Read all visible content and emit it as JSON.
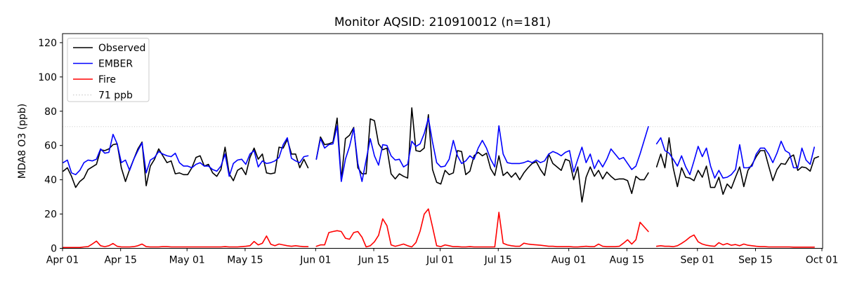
{
  "figure": {
    "title": "Monitor AQSID: 210910012 (n=181)"
  },
  "legend": {
    "items": [
      {
        "label": "Observed",
        "color": "#000000",
        "style": "solid"
      },
      {
        "label": "EMBER",
        "color": "#0000ff",
        "style": "solid"
      },
      {
        "label": "Fire",
        "color": "#ff0000",
        "style": "solid"
      },
      {
        "label": "71 ppb",
        "color": "#d3d3d3",
        "style": "dotted"
      }
    ],
    "position": "upper left"
  },
  "chart_data": {
    "type": "line",
    "title": "Monitor AQSID: 210910012 (n=181)",
    "xlabel": "",
    "ylabel": "MDA8 O3 (ppb)",
    "ylim": [
      0,
      125
    ],
    "grid": false,
    "x_unit": "daily dates",
    "date_range": [
      "Apr 01",
      "Sep 30"
    ],
    "missing_days": [
      "May 31",
      "Aug 21"
    ],
    "n_points": 181,
    "x_tick_labels": [
      "Apr 01",
      "Apr 15",
      "May 01",
      "May 15",
      "Jun 01",
      "Jun 15",
      "Jul 01",
      "Jul 15",
      "Aug 01",
      "Aug 15",
      "Sep 01",
      "Sep 15",
      "Oct 01"
    ],
    "x_tick_days": [
      0,
      14,
      30,
      44,
      61,
      75,
      91,
      105,
      122,
      136,
      153,
      167,
      183
    ],
    "y_ticks": [
      0,
      20,
      40,
      60,
      80,
      100,
      120
    ],
    "threshold": {
      "label": "71 ppb",
      "value": 71,
      "color": "#d3d3d3",
      "linestyle": "dotted"
    },
    "series": [
      {
        "name": "Observed",
        "color": "#000000",
        "values": [
          45,
          47,
          42,
          35.5,
          39,
          41,
          46,
          47.5,
          49,
          57.5,
          57,
          58,
          60.5,
          61,
          47,
          39,
          46,
          52,
          58,
          62,
          36.5,
          48,
          52,
          58,
          54,
          50,
          51,
          43.5,
          44,
          43,
          43,
          47,
          53,
          54,
          48,
          49,
          44,
          42,
          46,
          59,
          43.5,
          39.5,
          45.5,
          47,
          43,
          53,
          58.5,
          52,
          55,
          44,
          43.5,
          44,
          59,
          58.5,
          63.5,
          55,
          55,
          47,
          52,
          47,
          null,
          52,
          65,
          60.5,
          61,
          62,
          76,
          40,
          64,
          66,
          70.5,
          47,
          43.5,
          43.5,
          75.5,
          74.5,
          61,
          57.5,
          58.5,
          43.5,
          40.5,
          43.5,
          42,
          41,
          82,
          57,
          56.5,
          58.5,
          78,
          46,
          38.5,
          37.5,
          45.5,
          43,
          44,
          57,
          56.5,
          43,
          45,
          54,
          56,
          54,
          55.5,
          46.5,
          42.5,
          54,
          42.5,
          44.5,
          41.5,
          44,
          40,
          44,
          47,
          49.5,
          50.5,
          46,
          42.5,
          55,
          49.5,
          47.5,
          45.5,
          52,
          51,
          40,
          47.5,
          27,
          41.5,
          47.5,
          42,
          45.5,
          40.5,
          44.5,
          42,
          40,
          40.5,
          40.5,
          39.5,
          32,
          42,
          40,
          40,
          44,
          null,
          47.5,
          55,
          47,
          64.5,
          47,
          36,
          47,
          41.5,
          41,
          39.5,
          45.5,
          41.5,
          48,
          35.5,
          35.5,
          41.5,
          31.5,
          37.5,
          35,
          41.5,
          47.5,
          36,
          45.5,
          49,
          53.5,
          57,
          57,
          48,
          39.5,
          46,
          49.5,
          49,
          53,
          54.5,
          45.5,
          47.5,
          47,
          45,
          52.5,
          53.5
        ]
      },
      {
        "name": "EMBER",
        "color": "#0000ff",
        "values": [
          50,
          51.5,
          44,
          43,
          45.5,
          50,
          51.5,
          51,
          52,
          58,
          55.5,
          56,
          66.5,
          61,
          50,
          51.5,
          45.5,
          52,
          57,
          61.5,
          44,
          51.5,
          53,
          56.5,
          55,
          54,
          53.5,
          55.5,
          50,
          48,
          48,
          47,
          49,
          50,
          48,
          48,
          46,
          45,
          48,
          55,
          42,
          49.5,
          51.5,
          52,
          49,
          55,
          57,
          47.5,
          51,
          49.5,
          50,
          51,
          53,
          60.5,
          64.5,
          52.5,
          51,
          50,
          53.5,
          54,
          null,
          52,
          64,
          58.5,
          60.5,
          61,
          71.5,
          39,
          52,
          59.5,
          70,
          49.5,
          39,
          51.5,
          64,
          54,
          48.5,
          60.5,
          60,
          54,
          51.5,
          52,
          47.5,
          49,
          62.5,
          59.5,
          61,
          67,
          76,
          62,
          50,
          47.5,
          48,
          52,
          63,
          54,
          49.5,
          51,
          54,
          52,
          58.5,
          63,
          58.5,
          52,
          47.5,
          71.5,
          55,
          50,
          49.5,
          49.5,
          49.5,
          50,
          51,
          50,
          51.5,
          50,
          51,
          55,
          56.5,
          55.5,
          54,
          56,
          57,
          44.5,
          52,
          59,
          50,
          55,
          46.5,
          51.5,
          47.5,
          52,
          58,
          55,
          52,
          53,
          49.5,
          46,
          48,
          55,
          63,
          71,
          null,
          61,
          64.5,
          57,
          55.5,
          52,
          48,
          54,
          47.5,
          43,
          51,
          59.5,
          53.5,
          58.5,
          48,
          41,
          45.5,
          41,
          41.5,
          43,
          46,
          60.5,
          47,
          47,
          48,
          55,
          58.5,
          58.5,
          55,
          50,
          55.5,
          62.5,
          57,
          55.5,
          47,
          47,
          58.5,
          51.5,
          49,
          59,
          null
        ]
      },
      {
        "name": "Fire",
        "color": "#ff0000",
        "values": [
          0.5,
          0.5,
          0.5,
          0.5,
          0.5,
          0.8,
          1,
          2.5,
          4.2,
          1.5,
          1,
          1.5,
          2.8,
          1.2,
          0.8,
          0.8,
          0.8,
          1,
          1.5,
          2.5,
          1,
          0.8,
          0.8,
          0.8,
          1,
          1,
          0.8,
          0.8,
          0.8,
          0.8,
          0.8,
          0.8,
          0.8,
          0.8,
          0.8,
          0.8,
          0.8,
          0.8,
          0.8,
          1,
          0.8,
          0.8,
          0.8,
          1,
          1.2,
          1.5,
          4,
          2,
          3,
          7.2,
          2.4,
          1.5,
          2.5,
          2,
          1.5,
          1.2,
          1.5,
          1.2,
          1,
          1,
          null,
          1.2,
          2,
          2,
          9.2,
          9.8,
          10.3,
          9.8,
          5.9,
          5.3,
          9.2,
          9.8,
          6.5,
          0.8,
          1.5,
          3.8,
          7.6,
          17.2,
          13.2,
          2,
          1.2,
          1.8,
          2.5,
          1.5,
          0.8,
          3.4,
          10,
          20,
          23,
          12.5,
          1.5,
          1,
          2,
          1.5,
          1,
          1,
          0.8,
          0.8,
          1,
          0.8,
          0.8,
          0.8,
          0.8,
          0.8,
          0.8,
          21,
          3,
          2,
          1.5,
          1.2,
          1.2,
          3,
          2.5,
          2.2,
          2,
          1.8,
          1.5,
          1.2,
          1.2,
          1,
          1,
          1,
          1,
          0.8,
          0.8,
          1,
          1.2,
          1,
          1,
          2.5,
          1.2,
          1,
          1,
          1,
          1.2,
          3,
          5,
          2.5,
          5,
          15.2,
          12.5,
          9.8,
          null,
          1.2,
          1.5,
          1.2,
          1.2,
          1,
          1.5,
          2.9,
          4.5,
          6.5,
          7.8,
          3.8,
          2.5,
          1.8,
          1.4,
          1.2,
          3.3,
          2,
          2.8,
          1.8,
          2.2,
          1.5,
          2.5,
          1.8,
          1.5,
          1.2,
          1,
          1,
          0.8,
          0.8,
          0.8,
          0.8,
          0.8,
          0.8,
          0.7,
          0.7,
          0.7,
          0.7,
          0.7,
          0.7,
          null
        ]
      }
    ]
  }
}
